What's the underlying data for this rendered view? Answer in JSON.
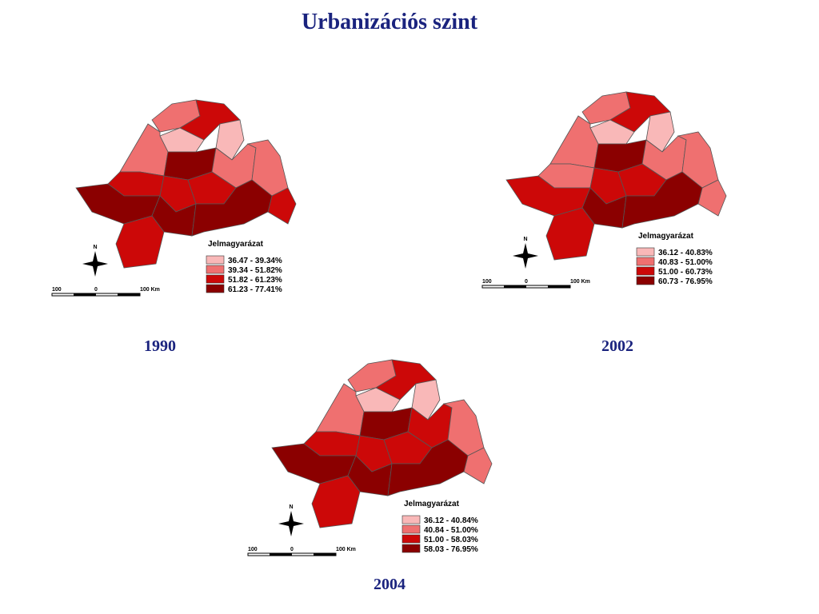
{
  "title": "Urbanizációs szint",
  "maps": [
    {
      "year": "1990",
      "north": "N",
      "legend": {
        "title": "Jelmagyarázat",
        "items": [
          {
            "label": "36.47 - 39.34%",
            "color": "#f9b8b8"
          },
          {
            "label": "39.34 - 51.82%",
            "color": "#ef7070"
          },
          {
            "label": "51.82 - 61.23%",
            "color": "#cc0808"
          },
          {
            "label": "61.23 - 77.41%",
            "color": "#8b0000"
          }
        ]
      },
      "scale": [
        "100",
        "0",
        "100 Km"
      ]
    },
    {
      "year": "2002",
      "north": "N",
      "legend": {
        "title": "Jelmagyarázat",
        "items": [
          {
            "label": "36.12 - 40.83%",
            "color": "#f9b8b8"
          },
          {
            "label": "40.83 - 51.00%",
            "color": "#ef7070"
          },
          {
            "label": "51.00 - 60.73%",
            "color": "#cc0808"
          },
          {
            "label": "60.73 - 76.95%",
            "color": "#8b0000"
          }
        ]
      },
      "scale": [
        "100",
        "0",
        "100 Km"
      ]
    },
    {
      "year": "2004",
      "north": "N",
      "legend": {
        "title": "Jelmagyarázat",
        "items": [
          {
            "label": "36.12 - 40.84%",
            "color": "#f9b8b8"
          },
          {
            "label": "40.84 - 51.00%",
            "color": "#ef7070"
          },
          {
            "label": "51.00 - 58.03%",
            "color": "#cc0808"
          },
          {
            "label": "58.03 - 76.95%",
            "color": "#8b0000"
          }
        ]
      },
      "scale": [
        "100",
        "0",
        "100 Km"
      ]
    }
  ]
}
